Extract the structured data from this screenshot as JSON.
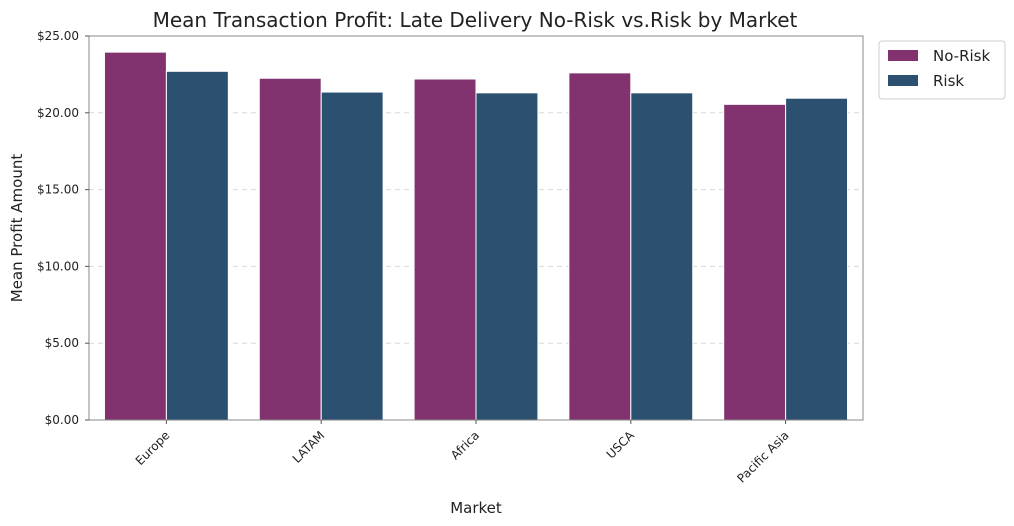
{
  "chart_data": {
    "type": "bar",
    "title": "Mean Transaction Profit: Late Delivery No-Risk vs.Risk by Market",
    "xlabel": "Market",
    "ylabel": "Mean Profit Amount",
    "categories": [
      "Europe",
      "LATAM",
      "Africa",
      "USCA",
      "Pacific Asia"
    ],
    "series": [
      {
        "name": "No-Risk",
        "color": "#82336f",
        "values": [
          23.95,
          22.25,
          22.2,
          22.6,
          20.55
        ]
      },
      {
        "name": "Risk",
        "color": "#2b5070",
        "values": [
          22.7,
          21.35,
          21.3,
          21.3,
          20.95
        ]
      }
    ],
    "ylim": [
      0,
      25
    ],
    "yticks": [
      0,
      5,
      10,
      15,
      20,
      25
    ],
    "ytick_labels": [
      "$0.00",
      "$5.00",
      "$10.00",
      "$15.00",
      "$20.00",
      "$25.00"
    ],
    "grid": "horizontal dashed",
    "legend_position": "outside top-right"
  }
}
